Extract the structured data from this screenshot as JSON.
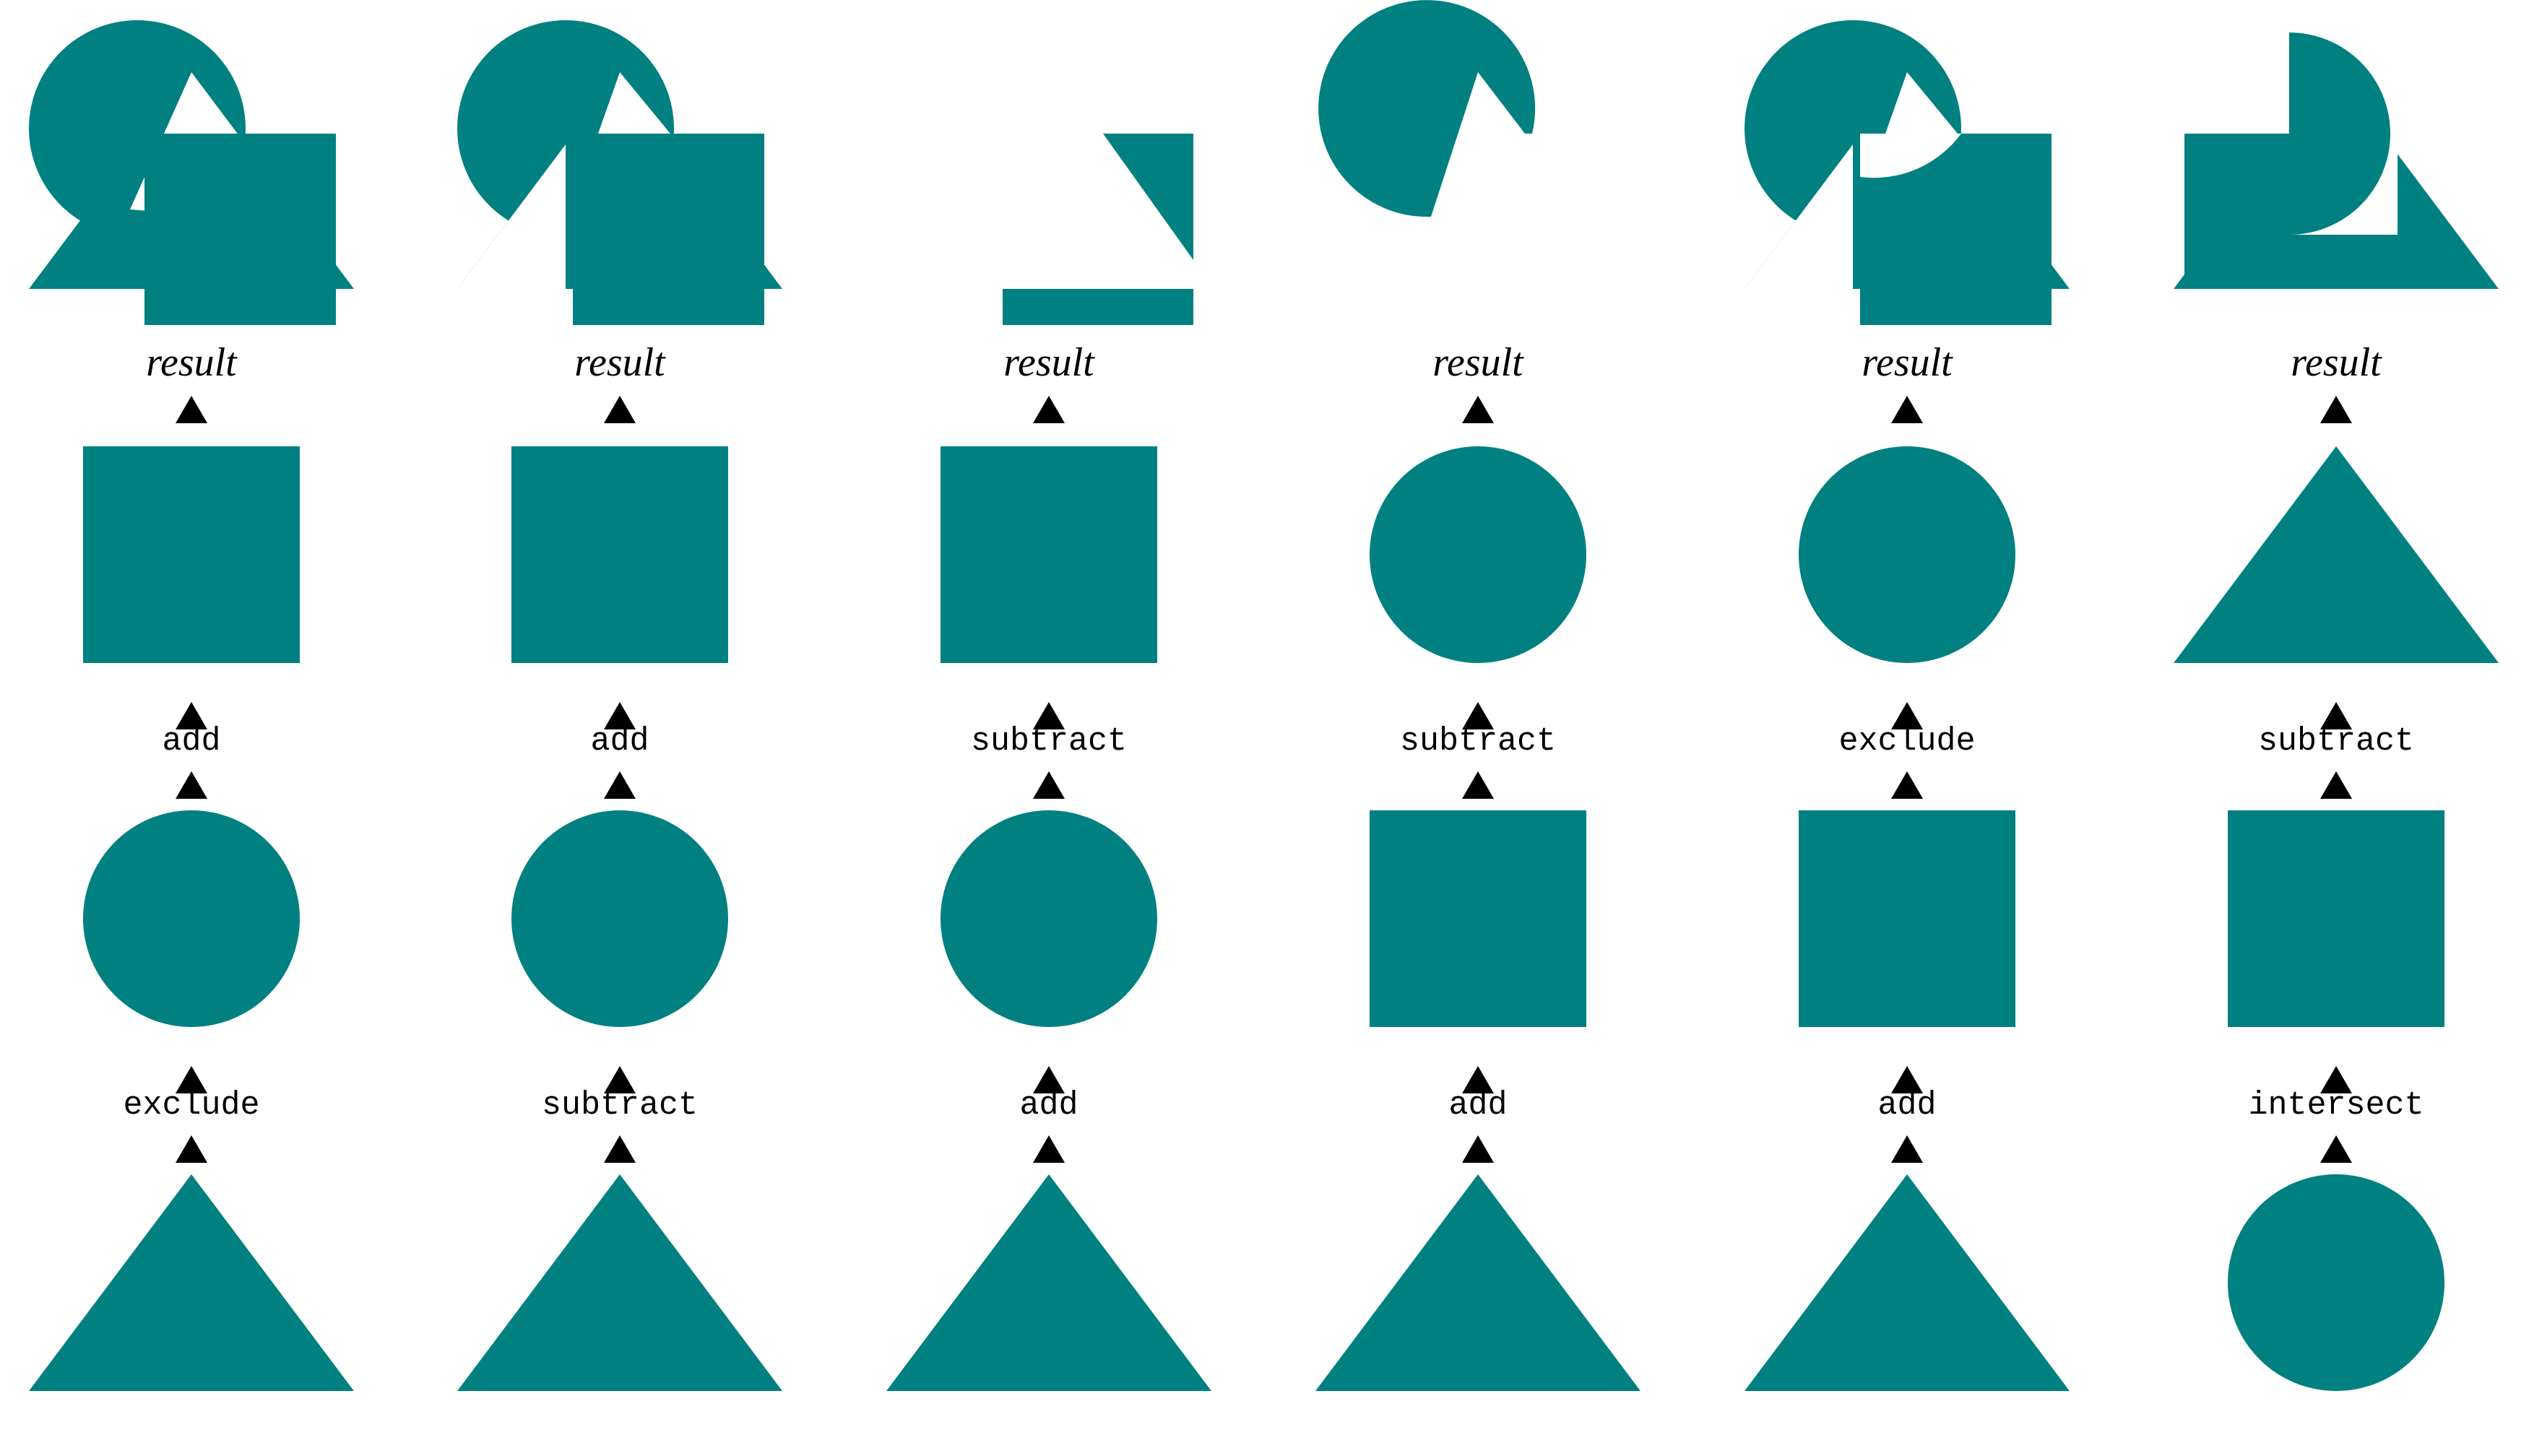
{
  "colors": {
    "fill": "#008080",
    "background": "#ffffff",
    "ink": "#000000"
  },
  "columns": [
    {
      "bottom_shape": "triangle",
      "operation_1": "exclude",
      "middle_shape": "circle",
      "operation_2": "add",
      "top_shape": "square",
      "result_label": "result"
    },
    {
      "bottom_shape": "triangle",
      "operation_1": "subtract",
      "middle_shape": "circle",
      "operation_2": "add",
      "top_shape": "square",
      "result_label": "result"
    },
    {
      "bottom_shape": "triangle",
      "operation_1": "add",
      "middle_shape": "circle",
      "operation_2": "subtract",
      "top_shape": "square",
      "result_label": "result"
    },
    {
      "bottom_shape": "triangle",
      "operation_1": "add",
      "middle_shape": "square",
      "operation_2": "subtract",
      "top_shape": "circle",
      "result_label": "result"
    },
    {
      "bottom_shape": "triangle",
      "operation_1": "add",
      "middle_shape": "square",
      "operation_2": "exclude",
      "top_shape": "circle",
      "result_label": "result"
    },
    {
      "bottom_shape": "circle",
      "operation_1": "intersect",
      "middle_shape": "square",
      "operation_2": "subtract",
      "top_shape": "triangle",
      "result_label": "result"
    }
  ]
}
